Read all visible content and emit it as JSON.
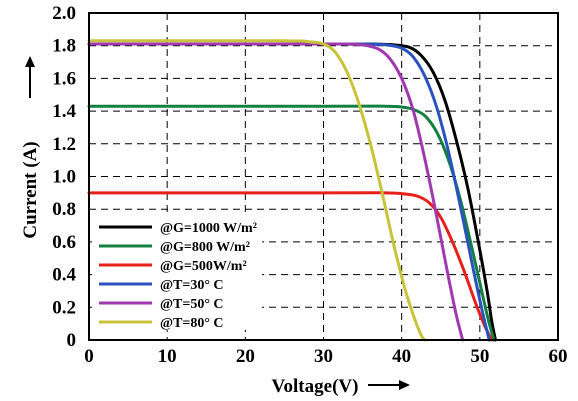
{
  "chart_data": {
    "type": "line",
    "xlabel": "Voltage(V)",
    "ylabel": "Current (A)",
    "xlim": [
      0,
      60
    ],
    "ylim": [
      0,
      2.0
    ],
    "x_ticks": [
      "0",
      "10",
      "20",
      "30",
      "40",
      "50",
      "60"
    ],
    "y_ticks": [
      "0",
      "0.2",
      "0.4",
      "0.6",
      "0.8",
      "1.0",
      "1.2",
      "1.4",
      "1.6",
      "1.8",
      "2.0"
    ],
    "grid": true,
    "legend_position": "bottom-left",
    "series": [
      {
        "name": "@G=1000 W/m²",
        "color": "#000000",
        "x": [
          0,
          30,
          36,
          39,
          41,
          42.5,
          44,
          45.5,
          47,
          48.5,
          50,
          51,
          51.5,
          52
        ],
        "y": [
          1.81,
          1.81,
          1.81,
          1.805,
          1.79,
          1.74,
          1.64,
          1.47,
          1.22,
          0.92,
          0.55,
          0.28,
          0.12,
          0
        ]
      },
      {
        "name": "@G=800 W/m²",
        "color": "#128040",
        "x": [
          0,
          30,
          38,
          40,
          41.5,
          43,
          44.5,
          46,
          47.5,
          49,
          50,
          51,
          51.8
        ],
        "y": [
          1.43,
          1.43,
          1.43,
          1.425,
          1.41,
          1.37,
          1.27,
          1.1,
          0.86,
          0.56,
          0.35,
          0.14,
          0
        ]
      },
      {
        "name": "@G=500W/m²",
        "color": "#e8201a",
        "x": [
          0,
          30,
          38,
          40,
          42,
          43.5,
          45,
          46.5,
          48,
          49.5,
          50.5,
          51.5
        ],
        "y": [
          0.9,
          0.9,
          0.9,
          0.895,
          0.88,
          0.84,
          0.75,
          0.6,
          0.42,
          0.22,
          0.1,
          0
        ]
      },
      {
        "name": "@T=30° C",
        "color": "#2a52c0",
        "x": [
          0,
          30,
          35,
          38,
          40,
          41.5,
          43,
          44.5,
          46,
          47.5,
          49,
          50.2,
          51.2
        ],
        "y": [
          1.81,
          1.81,
          1.81,
          1.805,
          1.785,
          1.73,
          1.61,
          1.42,
          1.15,
          0.82,
          0.47,
          0.2,
          0
        ]
      },
      {
        "name": "@T=50° C",
        "color": "#a038b0",
        "x": [
          0,
          28,
          32,
          35,
          37,
          38.5,
          40,
          41.5,
          43,
          44.5,
          46,
          47,
          47.8
        ],
        "y": [
          1.81,
          1.81,
          1.81,
          1.805,
          1.78,
          1.72,
          1.6,
          1.4,
          1.1,
          0.75,
          0.38,
          0.15,
          0
        ]
      },
      {
        "name": "@T=80° C",
        "color": "#c8c43a",
        "x": [
          0,
          24,
          28,
          30,
          31.5,
          33,
          34.5,
          36,
          37.5,
          39,
          40.5,
          41.8,
          42.6,
          43
        ],
        "y": [
          1.83,
          1.83,
          1.825,
          1.81,
          1.76,
          1.64,
          1.45,
          1.2,
          0.9,
          0.58,
          0.3,
          0.11,
          0.02,
          0
        ]
      }
    ]
  }
}
